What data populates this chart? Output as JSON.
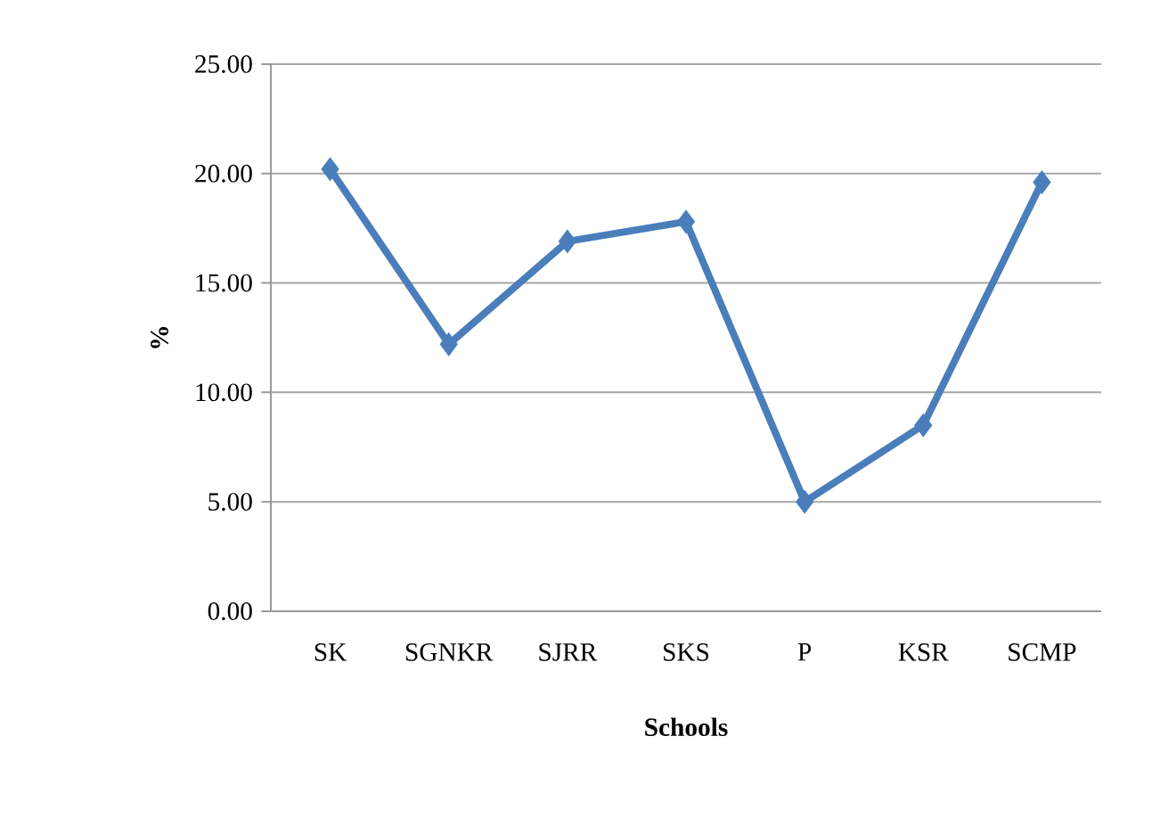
{
  "chart_data": {
    "type": "line",
    "xlabel": "Schools",
    "ylabel": "%",
    "categories": [
      "SK",
      "SGNKR",
      "SJRR",
      "SKS",
      "P",
      "KSR",
      "SCMP"
    ],
    "values": [
      20.2,
      12.2,
      16.9,
      17.8,
      5.0,
      8.5,
      19.6
    ],
    "color": "#4a7ebb",
    "marker": "diamond",
    "grid": "y",
    "ylim": [
      0,
      25
    ],
    "yticks": [
      {
        "value": 0,
        "label": "0.00"
      },
      {
        "value": 5,
        "label": "5.00"
      },
      {
        "value": 10,
        "label": "10.00"
      },
      {
        "value": 15,
        "label": "15.00"
      },
      {
        "value": 20,
        "label": "20.00"
      },
      {
        "value": 25,
        "label": "25.00"
      }
    ]
  }
}
